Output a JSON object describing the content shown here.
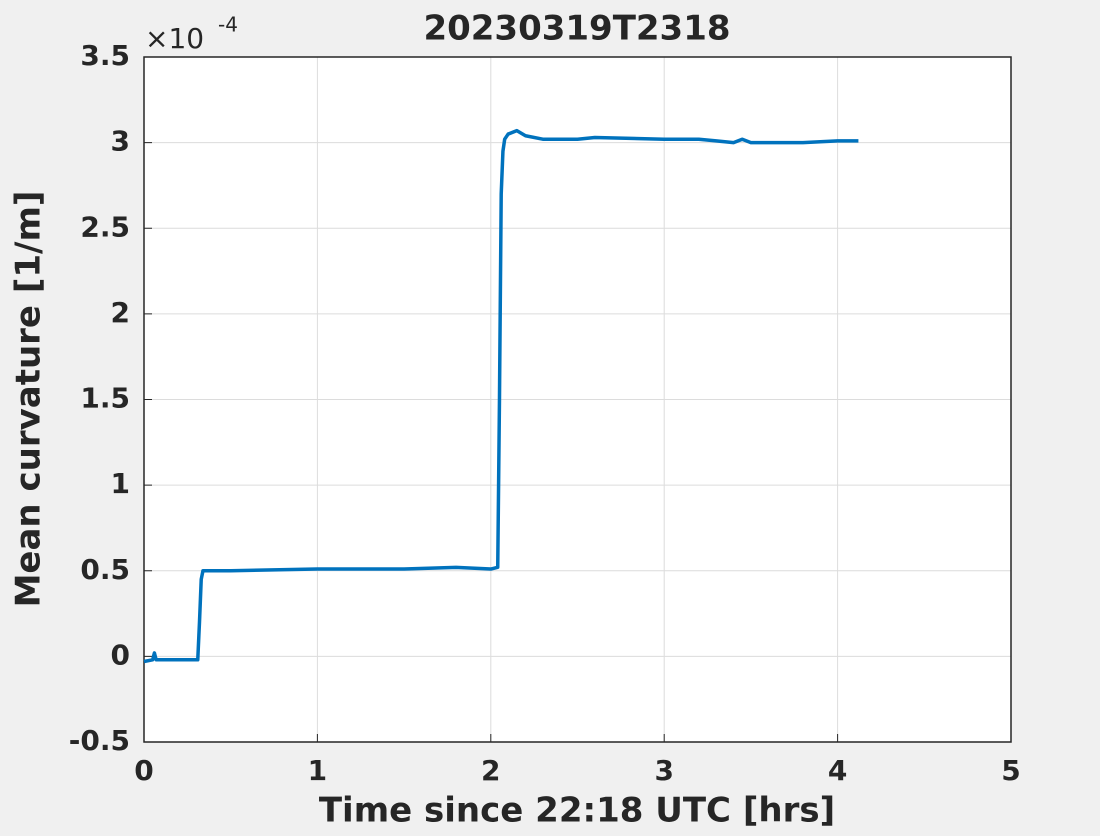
{
  "chart_data": {
    "type": "line",
    "title": "20230319T2318",
    "xlabel": "Time since 22:18 UTC [hrs]",
    "ylabel": "Mean curvature [1/m]",
    "y_exponent": {
      "base": "×10",
      "power": "-4"
    },
    "xlim": [
      0,
      5
    ],
    "xticks": [
      0,
      1,
      2,
      3,
      4,
      5
    ],
    "ylim": [
      -0.5,
      3.5
    ],
    "yticks": [
      -0.5,
      0,
      0.5,
      1,
      1.5,
      2,
      2.5,
      3,
      3.5
    ],
    "grid": true,
    "series": [
      {
        "color": "#0072bd",
        "x": [
          0,
          0.05,
          0.06,
          0.07,
          0.2,
          0.31,
          0.32,
          0.33,
          0.34,
          0.5,
          1.0,
          1.5,
          1.8,
          2.0,
          2.04,
          2.05,
          2.06,
          2.07,
          2.08,
          2.1,
          2.15,
          2.2,
          2.3,
          2.5,
          2.6,
          3.0,
          3.2,
          3.3,
          3.4,
          3.45,
          3.5,
          3.6,
          3.8,
          4.0,
          4.12
        ],
        "values": [
          -0.03,
          -0.02,
          0.02,
          -0.02,
          -0.02,
          -0.02,
          0.2,
          0.45,
          0.5,
          0.5,
          0.51,
          0.51,
          0.52,
          0.51,
          0.52,
          1.5,
          2.7,
          2.95,
          3.02,
          3.05,
          3.07,
          3.04,
          3.02,
          3.02,
          3.03,
          3.02,
          3.02,
          3.01,
          3.0,
          3.02,
          3.0,
          3.0,
          3.0,
          3.01,
          3.01
        ]
      }
    ]
  }
}
